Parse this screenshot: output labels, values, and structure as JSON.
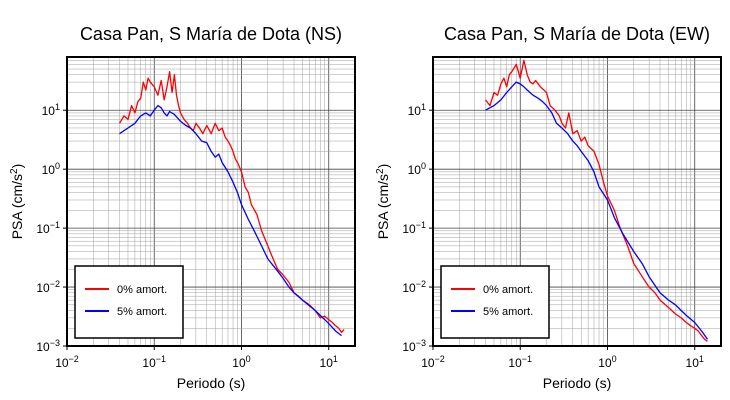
{
  "chart_data": [
    {
      "type": "line",
      "title": "Casa Pan, S María de Dota (NS)",
      "xlabel": "Periodo (s)",
      "ylabel": "PSA (cm/s²)",
      "xscale": "log",
      "yscale": "log",
      "xlim": [
        0.01,
        20
      ],
      "ylim": [
        0.001,
        80
      ],
      "xticks": [
        "10^-2",
        "10^-1",
        "10^0",
        "10^1"
      ],
      "yticks": [
        "10^-3",
        "10^-2",
        "10^-1",
        "10^0",
        "10^1"
      ],
      "grid": true,
      "legend_position": "bottom-left",
      "series": [
        {
          "name": "0% amort.",
          "color": "#ff0000",
          "x": [
            0.04,
            0.045,
            0.05,
            0.055,
            0.06,
            0.065,
            0.07,
            0.075,
            0.08,
            0.085,
            0.09,
            0.1,
            0.11,
            0.12,
            0.13,
            0.14,
            0.15,
            0.16,
            0.17,
            0.18,
            0.19,
            0.2,
            0.22,
            0.24,
            0.26,
            0.28,
            0.3,
            0.33,
            0.36,
            0.4,
            0.45,
            0.5,
            0.55,
            0.6,
            0.65,
            0.7,
            0.75,
            0.8,
            0.85,
            0.9,
            1.0,
            1.1,
            1.2,
            1.3,
            1.5,
            1.7,
            2.0,
            2.3,
            2.6,
            3.0,
            3.5,
            4.0,
            4.5,
            5.0,
            6.0,
            7.0,
            8.0,
            9.0,
            10.0,
            11.0,
            12.0,
            13.0,
            14.0,
            15.0
          ],
          "y": [
            6.0,
            8.0,
            7.0,
            12.0,
            9.0,
            14.0,
            16.0,
            30.0,
            22.0,
            35.0,
            30.0,
            25.0,
            18.0,
            32.0,
            15.0,
            25.0,
            45.0,
            20.0,
            40.0,
            18.0,
            12.0,
            9.0,
            7.0,
            6.0,
            5.0,
            4.5,
            6.0,
            5.0,
            4.0,
            5.5,
            4.0,
            6.0,
            4.5,
            5.0,
            3.5,
            3.0,
            2.5,
            2.0,
            1.5,
            1.3,
            0.9,
            0.5,
            0.4,
            0.25,
            0.17,
            0.09,
            0.05,
            0.03,
            0.02,
            0.016,
            0.012,
            0.008,
            0.007,
            0.006,
            0.005,
            0.004,
            0.003,
            0.0032,
            0.0028,
            0.0025,
            0.0022,
            0.002,
            0.0017,
            0.0019
          ]
        },
        {
          "name": "5% amort.",
          "color": "#0000ff",
          "x": [
            0.04,
            0.05,
            0.06,
            0.07,
            0.08,
            0.09,
            0.1,
            0.11,
            0.12,
            0.13,
            0.14,
            0.15,
            0.17,
            0.2,
            0.23,
            0.26,
            0.3,
            0.35,
            0.4,
            0.45,
            0.5,
            0.55,
            0.6,
            0.7,
            0.8,
            0.9,
            1.0,
            1.2,
            1.4,
            1.7,
            2.0,
            2.5,
            3.0,
            3.5,
            4.0,
            5.0,
            6.0,
            7.0,
            8.0,
            9.0,
            10.0,
            12.0,
            14.0
          ],
          "y": [
            4.0,
            5.0,
            6.0,
            8.0,
            9.0,
            8.0,
            10.0,
            12.0,
            11.0,
            9.0,
            8.0,
            9.5,
            8.5,
            6.5,
            5.5,
            5.0,
            4.0,
            3.0,
            2.8,
            2.0,
            1.6,
            1.8,
            1.3,
            0.9,
            0.6,
            0.4,
            0.25,
            0.14,
            0.09,
            0.05,
            0.03,
            0.02,
            0.014,
            0.01,
            0.008,
            0.006,
            0.0048,
            0.004,
            0.0033,
            0.0028,
            0.0024,
            0.0018,
            0.0015
          ]
        }
      ]
    },
    {
      "type": "line",
      "title": "Casa Pan, S María de Dota (EW)",
      "xlabel": "Periodo (s)",
      "ylabel": "PSA (cm/s²)",
      "xscale": "log",
      "yscale": "log",
      "xlim": [
        0.01,
        20
      ],
      "ylim": [
        0.001,
        80
      ],
      "xticks": [
        "10^-2",
        "10^-1",
        "10^0",
        "10^1"
      ],
      "yticks": [
        "10^-3",
        "10^-2",
        "10^-1",
        "10^0",
        "10^1"
      ],
      "grid": true,
      "legend_position": "bottom-left",
      "series": [
        {
          "name": "0% amort.",
          "color": "#ff0000",
          "x": [
            0.04,
            0.045,
            0.05,
            0.055,
            0.06,
            0.065,
            0.07,
            0.075,
            0.08,
            0.09,
            0.1,
            0.11,
            0.12,
            0.13,
            0.14,
            0.15,
            0.17,
            0.2,
            0.22,
            0.25,
            0.28,
            0.3,
            0.33,
            0.36,
            0.4,
            0.45,
            0.5,
            0.55,
            0.6,
            0.7,
            0.8,
            0.9,
            1.0,
            1.2,
            1.4,
            1.7,
            2.0,
            2.5,
            3.0,
            3.5,
            4.0,
            5.0,
            6.0,
            7.0,
            8.0,
            9.0,
            10.0,
            11.0,
            12.0,
            13.0,
            14.0
          ],
          "y": [
            15.0,
            12.0,
            20.0,
            18.0,
            28.0,
            35.0,
            25.0,
            40.0,
            45.0,
            60.0,
            35.0,
            70.0,
            40.0,
            30.0,
            28.0,
            32.0,
            25.0,
            20.0,
            12.0,
            10.0,
            8.0,
            6.0,
            5.0,
            9.0,
            4.0,
            4.5,
            3.0,
            3.5,
            2.5,
            2.0,
            1.2,
            0.6,
            0.35,
            0.2,
            0.1,
            0.05,
            0.025,
            0.015,
            0.01,
            0.008,
            0.006,
            0.0045,
            0.0035,
            0.003,
            0.0025,
            0.0022,
            0.002,
            0.0018,
            0.0015,
            0.0013,
            0.0012
          ]
        },
        {
          "name": "5% amort.",
          "color": "#0000ff",
          "x": [
            0.04,
            0.05,
            0.06,
            0.07,
            0.08,
            0.09,
            0.1,
            0.11,
            0.12,
            0.14,
            0.16,
            0.18,
            0.2,
            0.23,
            0.26,
            0.3,
            0.35,
            0.4,
            0.45,
            0.5,
            0.6,
            0.7,
            0.8,
            1.0,
            1.2,
            1.5,
            2.0,
            2.5,
            3.0,
            4.0,
            5.0,
            6.0,
            7.0,
            8.0,
            10.0,
            12.0,
            14.0
          ],
          "y": [
            10.0,
            12.0,
            15.0,
            20.0,
            25.0,
            30.0,
            28.0,
            25.0,
            22.0,
            18.0,
            16.0,
            14.0,
            12.0,
            9.0,
            6.0,
            5.0,
            4.0,
            3.0,
            2.5,
            2.0,
            1.4,
            0.9,
            0.5,
            0.3,
            0.15,
            0.08,
            0.04,
            0.025,
            0.015,
            0.008,
            0.006,
            0.005,
            0.004,
            0.0033,
            0.0025,
            0.0018,
            0.0013
          ]
        }
      ]
    }
  ]
}
